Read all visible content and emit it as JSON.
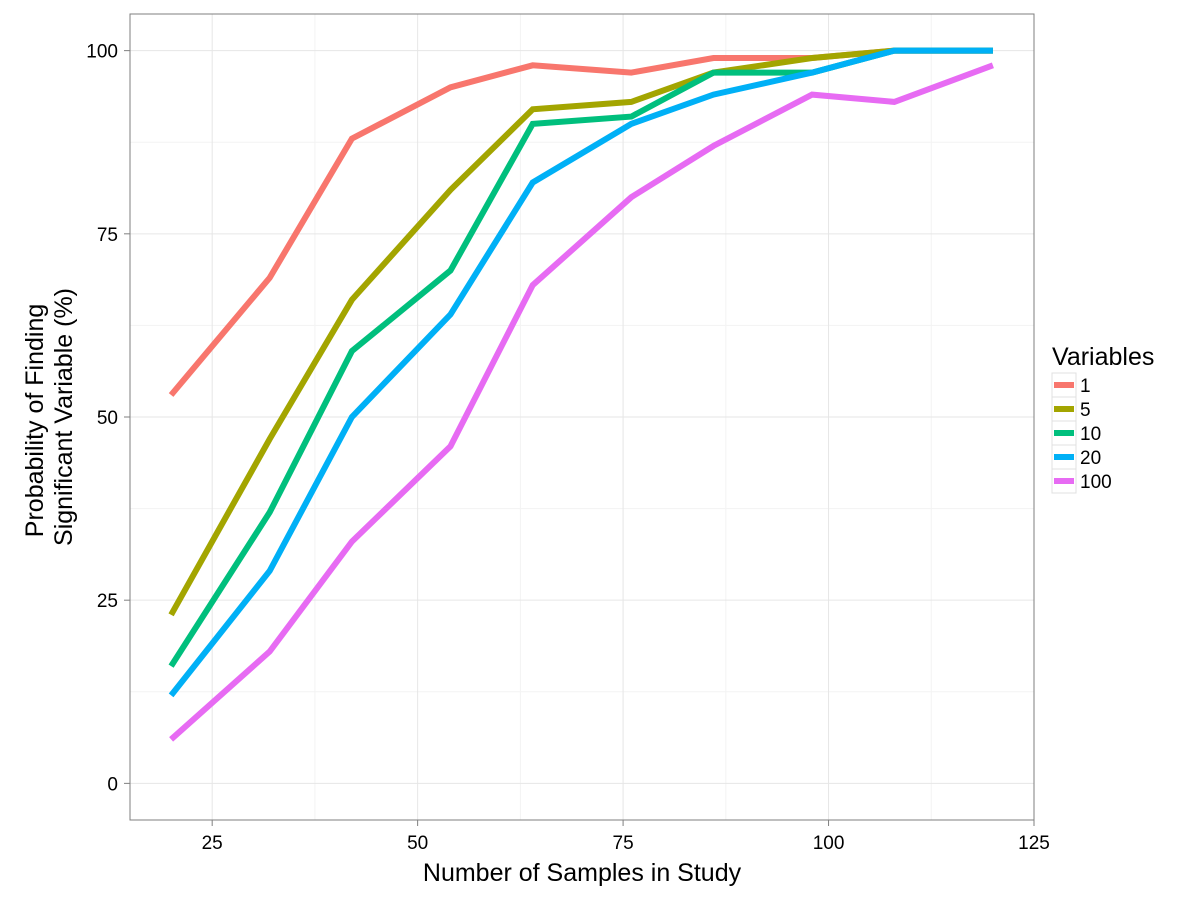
{
  "chart_data": {
    "type": "line",
    "xlabel": "Number of Samples in Study",
    "ylabel_lines": [
      "Probability of Finding",
      "Significant Variable (%)"
    ],
    "xlim": [
      15,
      125
    ],
    "ylim": [
      -5,
      105
    ],
    "x_ticks": [
      25,
      50,
      75,
      100,
      125
    ],
    "y_ticks": [
      0,
      25,
      50,
      75,
      100
    ],
    "x_tick_labels": [
      "25",
      "50",
      "75",
      "100",
      "125"
    ],
    "y_tick_labels": [
      "0",
      "25",
      "50",
      "75",
      "100"
    ],
    "grid": true,
    "legend": {
      "title": "Variables",
      "placement": "right"
    },
    "series": [
      {
        "name": "1",
        "color": "#F8766D",
        "x": [
          20,
          32,
          42,
          54,
          64,
          76,
          86,
          98,
          108,
          120
        ],
        "y": [
          53,
          69,
          88,
          95,
          98,
          97,
          99,
          99,
          100,
          100
        ]
      },
      {
        "name": "5",
        "color": "#A3A500",
        "x": [
          20,
          32,
          42,
          54,
          64,
          76,
          86,
          98,
          108,
          120
        ],
        "y": [
          23,
          47,
          66,
          81,
          92,
          93,
          97,
          99,
          100,
          100
        ]
      },
      {
        "name": "10",
        "color": "#00BF7D",
        "x": [
          20,
          32,
          42,
          54,
          64,
          76,
          86,
          98,
          108,
          120
        ],
        "y": [
          16,
          37,
          59,
          70,
          90,
          91,
          97,
          97,
          100,
          100
        ]
      },
      {
        "name": "20",
        "color": "#00B0F6",
        "x": [
          20,
          32,
          42,
          54,
          64,
          76,
          86,
          98,
          108,
          120
        ],
        "y": [
          12,
          29,
          50,
          64,
          82,
          90,
          94,
          97,
          100,
          100
        ]
      },
      {
        "name": "100",
        "color": "#E76BF3",
        "x": [
          20,
          32,
          42,
          54,
          64,
          76,
          86,
          98,
          108,
          120
        ],
        "y": [
          6,
          18,
          33,
          46,
          68,
          80,
          87,
          94,
          93,
          98
        ]
      }
    ]
  }
}
